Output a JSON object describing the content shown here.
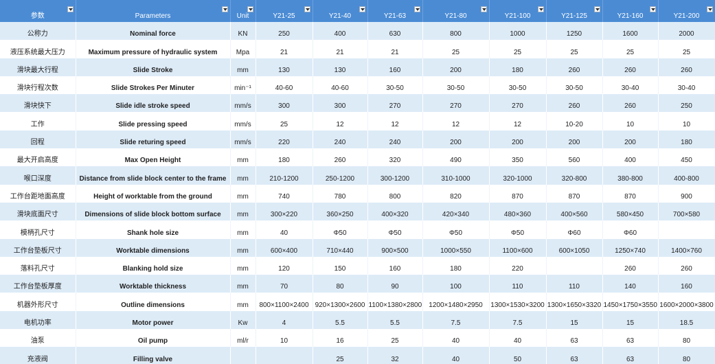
{
  "table": {
    "header": [
      "参数",
      "Parameters",
      "Unit",
      "Y21-25",
      "Y21-40",
      "Y21-63",
      "Y21-80",
      "Y21-100",
      "Y21-125",
      "Y21-160",
      "Y21-200"
    ],
    "rows": [
      [
        "公称力",
        "Nominal force",
        "KN",
        250,
        400,
        630,
        800,
        1000,
        1250,
        1600,
        2000
      ],
      [
        "液压系统最大压力",
        "Maximum pressure of hydraulic system",
        "Mpa",
        21,
        21,
        21,
        25,
        25,
        25,
        25,
        25
      ],
      [
        "滑块最大行程",
        "Slide Stroke",
        "mm",
        130,
        130,
        160,
        200,
        180,
        260,
        260,
        260
      ],
      [
        "滑块行程次数",
        "Slide Strokes Per Minuter",
        "min⁻¹",
        "40-60",
        "40-60",
        "30-50",
        "30-50",
        "30-50",
        "30-50",
        "30-40",
        "30-40"
      ],
      [
        "滑块快下",
        "Slide idle stroke speed",
        "mm/s",
        300,
        300,
        270,
        270,
        270,
        260,
        260,
        250
      ],
      [
        "工作",
        "Slide pressing speed",
        "mm/s",
        25,
        12,
        12,
        12,
        12,
        "10-20",
        10,
        10
      ],
      [
        "回程",
        "Slide returing speed",
        "mm/s",
        220,
        240,
        240,
        200,
        200,
        200,
        200,
        180
      ],
      [
        "最大开启高度",
        "Max Open Height",
        "mm",
        180,
        260,
        320,
        490,
        350,
        560,
        400,
        450
      ],
      [
        "喉口深度",
        "Distance from slide block center to the frame",
        "mm",
        "210-1200",
        "250-1200",
        "300-1200",
        "310-1000",
        "320-1000",
        "320-800",
        "380-800",
        "400-800"
      ],
      [
        "工作台距地面高度",
        "Height of worktable from the ground",
        "mm",
        740,
        780,
        800,
        820,
        870,
        870,
        870,
        900
      ],
      [
        "滑块底面尺寸",
        "Dimensions of slide block bottom surface",
        "mm",
        "300×220",
        "360×250",
        "400×320",
        "420×340",
        "480×360",
        "400×560",
        "580×450",
        "700×580"
      ],
      [
        "模柄孔尺寸",
        "Shank hole size",
        "mm",
        40,
        "Φ50",
        "Φ50",
        "Φ50",
        "Φ50",
        "Φ60",
        "Φ60",
        null
      ],
      [
        "工作台垫板尺寸",
        "Worktable dimensions",
        "mm",
        "600×400",
        "710×440",
        "900×500",
        "1000×550",
        "1100×600",
        "600×1050",
        "1250×740",
        "1400×760"
      ],
      [
        "落料孔尺寸",
        "Blanking hold size",
        "mm",
        120,
        150,
        160,
        180,
        220,
        null,
        260,
        260
      ],
      [
        "工作台垫板厚度",
        "Worktable thickness",
        "mm",
        70,
        80,
        90,
        100,
        110,
        110,
        140,
        160
      ],
      [
        "机器外形尺寸",
        "Outline dimensions",
        "mm",
        "800×1100×2400",
        "920×1300×2600",
        "1100×1380×2800",
        "1200×1480×2950",
        "1300×1530×3200",
        "1300×1650×3320",
        "1450×1750×3550",
        "1600×2000×3800"
      ],
      [
        "电机功率",
        "Motor power",
        "Kw",
        4,
        5.5,
        5.5,
        7.5,
        7.5,
        15,
        15,
        18.5
      ],
      [
        "油泵",
        "Oil pump",
        "ml/r",
        10,
        16,
        25,
        40,
        40,
        63,
        63,
        80
      ],
      [
        "充液阀",
        "Filling valve",
        null,
        null,
        25,
        32,
        40,
        50,
        63,
        63,
        80
      ]
    ]
  }
}
